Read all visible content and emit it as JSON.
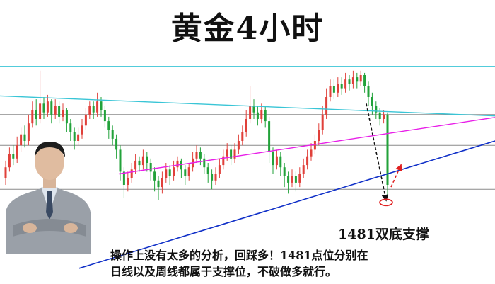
{
  "title": "黄金4小时",
  "annotation": "1481双底支撑",
  "comment_lines": [
    "操作上没有太多的分析，回踩多！1481点位分别在",
    "日线以及周线都属于支撑位，不破做多就行。"
  ],
  "colors": {
    "bull": "#e0403a",
    "bear": "#22a23a",
    "cyan_line": "#39c5d6",
    "magenta_line": "#e81ee8",
    "blue_line": "#1030c8",
    "grid": "#8a8a8a",
    "arrow_black": "#111111",
    "arrow_red": "#e02020"
  },
  "chart_data": {
    "type": "candlestick",
    "title": "黄金4小时",
    "xlabel": "",
    "ylabel": "",
    "ylim": [
      0,
      100
    ],
    "grid": true,
    "horizontal_levels": [
      94,
      72,
      58,
      38
    ],
    "support_label": "1481双底支撑",
    "trendlines": [
      {
        "color": "cyan",
        "points": [
          [
            0,
            80.5
          ],
          [
            100,
            71.4
          ]
        ]
      },
      {
        "color": "magenta",
        "points": [
          [
            24,
            45
          ],
          [
            100,
            70.7
          ]
        ]
      },
      {
        "color": "blue",
        "points": [
          [
            16,
            2
          ],
          [
            100,
            60
          ]
        ]
      }
    ],
    "arrows": [
      {
        "color": "black",
        "style": "dashed",
        "from": [
          74,
          77
        ],
        "to": [
          78,
          33
        ]
      },
      {
        "color": "red",
        "style": "dashed",
        "from": [
          79,
          39
        ],
        "to": [
          81,
          49
        ]
      }
    ],
    "marker": {
      "shape": "ellipse",
      "color": "red",
      "at": [
        78,
        32
      ]
    },
    "candles": [
      {
        "o": 43,
        "c": 48,
        "h": 51,
        "l": 40
      },
      {
        "o": 48,
        "c": 54,
        "h": 57,
        "l": 46
      },
      {
        "o": 54,
        "c": 52,
        "h": 58,
        "l": 49
      },
      {
        "o": 52,
        "c": 58,
        "h": 62,
        "l": 50
      },
      {
        "o": 58,
        "c": 63,
        "h": 66,
        "l": 55
      },
      {
        "o": 63,
        "c": 60,
        "h": 67,
        "l": 57
      },
      {
        "o": 60,
        "c": 68,
        "h": 72,
        "l": 58
      },
      {
        "o": 68,
        "c": 74,
        "h": 78,
        "l": 66
      },
      {
        "o": 74,
        "c": 70,
        "h": 79,
        "l": 67
      },
      {
        "o": 70,
        "c": 77,
        "h": 92,
        "l": 68
      },
      {
        "o": 77,
        "c": 73,
        "h": 80,
        "l": 70
      },
      {
        "o": 73,
        "c": 78,
        "h": 81,
        "l": 71
      },
      {
        "o": 78,
        "c": 72,
        "h": 79,
        "l": 68
      },
      {
        "o": 72,
        "c": 76,
        "h": 79,
        "l": 70
      },
      {
        "o": 76,
        "c": 71,
        "h": 78,
        "l": 68
      },
      {
        "o": 71,
        "c": 74,
        "h": 77,
        "l": 69
      },
      {
        "o": 74,
        "c": 68,
        "h": 75,
        "l": 64
      },
      {
        "o": 68,
        "c": 64,
        "h": 70,
        "l": 60
      },
      {
        "o": 64,
        "c": 60,
        "h": 66,
        "l": 56
      },
      {
        "o": 60,
        "c": 63,
        "h": 66,
        "l": 58
      },
      {
        "o": 63,
        "c": 67,
        "h": 70,
        "l": 61
      },
      {
        "o": 67,
        "c": 72,
        "h": 75,
        "l": 65
      },
      {
        "o": 72,
        "c": 76,
        "h": 78,
        "l": 70
      },
      {
        "o": 76,
        "c": 73,
        "h": 78,
        "l": 70
      },
      {
        "o": 73,
        "c": 78,
        "h": 82,
        "l": 71
      },
      {
        "o": 78,
        "c": 74,
        "h": 80,
        "l": 71
      },
      {
        "o": 74,
        "c": 69,
        "h": 76,
        "l": 66
      },
      {
        "o": 69,
        "c": 65,
        "h": 71,
        "l": 61
      },
      {
        "o": 65,
        "c": 61,
        "h": 67,
        "l": 58
      },
      {
        "o": 61,
        "c": 56,
        "h": 63,
        "l": 52
      },
      {
        "o": 56,
        "c": 46,
        "h": 58,
        "l": 42
      },
      {
        "o": 46,
        "c": 40,
        "h": 48,
        "l": 34
      },
      {
        "o": 40,
        "c": 43,
        "h": 46,
        "l": 37
      },
      {
        "o": 43,
        "c": 47,
        "h": 50,
        "l": 41
      },
      {
        "o": 47,
        "c": 51,
        "h": 54,
        "l": 45
      },
      {
        "o": 51,
        "c": 49,
        "h": 53,
        "l": 46
      },
      {
        "o": 49,
        "c": 53,
        "h": 56,
        "l": 47
      },
      {
        "o": 53,
        "c": 50,
        "h": 55,
        "l": 46
      },
      {
        "o": 50,
        "c": 46,
        "h": 52,
        "l": 42
      },
      {
        "o": 46,
        "c": 42,
        "h": 48,
        "l": 37
      },
      {
        "o": 42,
        "c": 39,
        "h": 44,
        "l": 33
      },
      {
        "o": 39,
        "c": 43,
        "h": 46,
        "l": 36
      },
      {
        "o": 43,
        "c": 47,
        "h": 50,
        "l": 41
      },
      {
        "o": 47,
        "c": 44,
        "h": 49,
        "l": 40
      },
      {
        "o": 44,
        "c": 48,
        "h": 51,
        "l": 42
      },
      {
        "o": 48,
        "c": 51,
        "h": 53,
        "l": 46
      },
      {
        "o": 51,
        "c": 47,
        "h": 52,
        "l": 43
      },
      {
        "o": 47,
        "c": 44,
        "h": 49,
        "l": 40
      },
      {
        "o": 44,
        "c": 48,
        "h": 50,
        "l": 42
      },
      {
        "o": 48,
        "c": 52,
        "h": 55,
        "l": 46
      },
      {
        "o": 52,
        "c": 55,
        "h": 58,
        "l": 50
      },
      {
        "o": 55,
        "c": 52,
        "h": 57,
        "l": 49
      },
      {
        "o": 52,
        "c": 48,
        "h": 54,
        "l": 45
      },
      {
        "o": 48,
        "c": 45,
        "h": 50,
        "l": 41
      },
      {
        "o": 45,
        "c": 42,
        "h": 47,
        "l": 38
      },
      {
        "o": 42,
        "c": 45,
        "h": 48,
        "l": 40
      },
      {
        "o": 45,
        "c": 49,
        "h": 52,
        "l": 43
      },
      {
        "o": 49,
        "c": 53,
        "h": 56,
        "l": 47
      },
      {
        "o": 53,
        "c": 56,
        "h": 59,
        "l": 51
      },
      {
        "o": 56,
        "c": 52,
        "h": 58,
        "l": 49
      },
      {
        "o": 52,
        "c": 56,
        "h": 59,
        "l": 50
      },
      {
        "o": 56,
        "c": 60,
        "h": 63,
        "l": 54
      },
      {
        "o": 60,
        "c": 64,
        "h": 67,
        "l": 58
      },
      {
        "o": 64,
        "c": 70,
        "h": 74,
        "l": 62
      },
      {
        "o": 70,
        "c": 76,
        "h": 85,
        "l": 68
      },
      {
        "o": 76,
        "c": 73,
        "h": 79,
        "l": 70
      },
      {
        "o": 73,
        "c": 70,
        "h": 76,
        "l": 67
      },
      {
        "o": 70,
        "c": 74,
        "h": 77,
        "l": 68
      },
      {
        "o": 74,
        "c": 69,
        "h": 76,
        "l": 66
      },
      {
        "o": 69,
        "c": 55,
        "h": 71,
        "l": 50
      },
      {
        "o": 55,
        "c": 49,
        "h": 57,
        "l": 45
      },
      {
        "o": 49,
        "c": 53,
        "h": 56,
        "l": 47
      },
      {
        "o": 53,
        "c": 48,
        "h": 55,
        "l": 44
      },
      {
        "o": 48,
        "c": 44,
        "h": 50,
        "l": 39
      },
      {
        "o": 44,
        "c": 41,
        "h": 46,
        "l": 36
      },
      {
        "o": 41,
        "c": 44,
        "h": 47,
        "l": 39
      },
      {
        "o": 44,
        "c": 41,
        "h": 46,
        "l": 37
      },
      {
        "o": 41,
        "c": 45,
        "h": 48,
        "l": 39
      },
      {
        "o": 45,
        "c": 49,
        "h": 52,
        "l": 43
      },
      {
        "o": 49,
        "c": 53,
        "h": 56,
        "l": 47
      },
      {
        "o": 53,
        "c": 56,
        "h": 59,
        "l": 51
      },
      {
        "o": 56,
        "c": 60,
        "h": 63,
        "l": 54
      },
      {
        "o": 60,
        "c": 65,
        "h": 68,
        "l": 58
      },
      {
        "o": 65,
        "c": 72,
        "h": 76,
        "l": 63
      },
      {
        "o": 72,
        "c": 80,
        "h": 84,
        "l": 70
      },
      {
        "o": 80,
        "c": 85,
        "h": 88,
        "l": 78
      },
      {
        "o": 85,
        "c": 82,
        "h": 88,
        "l": 79
      },
      {
        "o": 82,
        "c": 86,
        "h": 89,
        "l": 80
      },
      {
        "o": 86,
        "c": 84,
        "h": 89,
        "l": 81
      },
      {
        "o": 84,
        "c": 88,
        "h": 91,
        "l": 82
      },
      {
        "o": 88,
        "c": 86,
        "h": 90,
        "l": 83
      },
      {
        "o": 86,
        "c": 89,
        "h": 92,
        "l": 84
      },
      {
        "o": 89,
        "c": 87,
        "h": 91,
        "l": 84
      },
      {
        "o": 87,
        "c": 90,
        "h": 92,
        "l": 85
      },
      {
        "o": 90,
        "c": 85,
        "h": 91,
        "l": 82
      },
      {
        "o": 85,
        "c": 80,
        "h": 87,
        "l": 76
      },
      {
        "o": 80,
        "c": 76,
        "h": 82,
        "l": 72
      },
      {
        "o": 76,
        "c": 73,
        "h": 78,
        "l": 70
      },
      {
        "o": 73,
        "c": 70,
        "h": 75,
        "l": 67
      },
      {
        "o": 70,
        "c": 72,
        "h": 74,
        "l": 68
      },
      {
        "o": 72,
        "c": 40,
        "h": 73,
        "l": 34
      }
    ]
  }
}
